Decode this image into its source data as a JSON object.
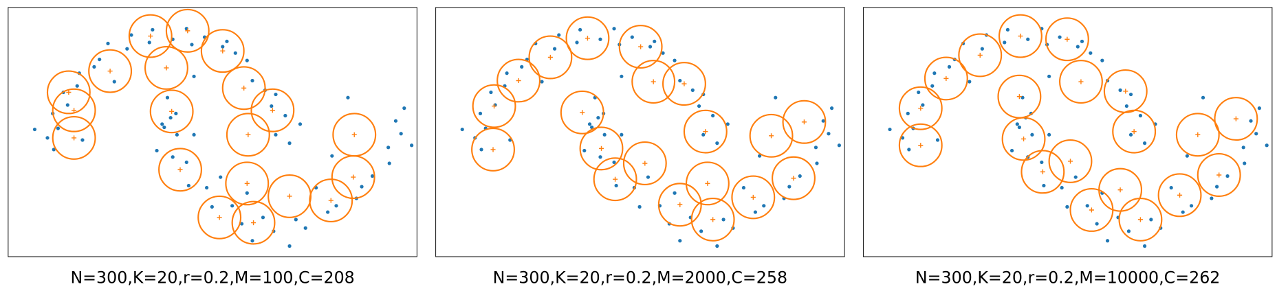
{
  "chart_data": [
    {
      "type": "scatter",
      "title": "N=300,K=20,r=0.2,M=100,C=208",
      "xlim": [
        -1.3,
        2.55
      ],
      "ylim": [
        -0.95,
        1.4
      ],
      "radius": 0.2,
      "points": {
        "color": "#1f77b4",
        "x": [
          1.35,
          1.22,
          1.31,
          1.18,
          1.12,
          1.22,
          1.0,
          0.95,
          0.84,
          0.72,
          0.76,
          0.55,
          0.43,
          0.38,
          0.25,
          0.06,
          0.03,
          -0.14,
          -0.18,
          -0.36,
          -0.44,
          -0.49,
          -0.63,
          -0.65,
          -0.78,
          -0.74,
          -0.88,
          -0.83,
          -0.93,
          -0.87,
          0.2,
          0.28,
          0.15,
          -1.05,
          -0.6,
          0.45,
          -0.3,
          1.45,
          0.23,
          0.17,
          0.29,
          0.25,
          0.38,
          0.4,
          0.57,
          0.62,
          0.81,
          0.9,
          1.1,
          1.2,
          1.41,
          1.5,
          1.71,
          1.79,
          1.98,
          2.03,
          2.13,
          2.29,
          2.28,
          2.4,
          2.35,
          2.43,
          1.0,
          1.35,
          0.7,
          1.6,
          2.5,
          0.1,
          1.9,
          0.95,
          1.75,
          0.45
        ],
        "y": [
          0.12,
          0.2,
          0.38,
          0.47,
          0.62,
          0.58,
          0.71,
          0.9,
          0.97,
          1.03,
          1.08,
          1.12,
          1.05,
          1.2,
          1.1,
          1.19,
          1.07,
          1.14,
          1.01,
          1.06,
          0.91,
          0.84,
          0.78,
          0.66,
          0.6,
          0.48,
          0.4,
          0.26,
          0.17,
          0.06,
          0.55,
          0.4,
          0.3,
          0.25,
          0.15,
          0.75,
          0.7,
          0.3,
          0.36,
          0.27,
          0.2,
          -0.01,
          -0.06,
          -0.28,
          -0.3,
          -0.48,
          -0.47,
          -0.64,
          -0.58,
          -0.71,
          -0.6,
          -0.68,
          -0.53,
          -0.47,
          -0.4,
          -0.29,
          -0.19,
          -0.07,
          0.08,
          0.21,
          0.33,
          0.45,
          -0.8,
          -0.85,
          -0.2,
          -0.3,
          0.1,
          0.05,
          0.55,
          -0.35,
          0.0,
          0.2
        ]
      },
      "centers": {
        "color": "#ff7f0e",
        "x": [
          0.04,
          0.39,
          0.72,
          -0.34,
          0.19,
          -0.73,
          -0.68,
          0.92,
          0.24,
          1.19,
          -0.68,
          1.96,
          0.96,
          0.32,
          1.95,
          0.95,
          1.35,
          1.74,
          0.69,
          1.01
        ],
        "y": [
          1.13,
          1.18,
          0.99,
          0.8,
          0.83,
          0.6,
          0.43,
          0.64,
          0.42,
          0.43,
          0.17,
          0.2,
          0.2,
          -0.13,
          -0.2,
          -0.26,
          -0.38,
          -0.42,
          -0.58,
          -0.63
        ]
      }
    },
    {
      "type": "scatter",
      "title": "N=300,K=20,r=0.2,M=2000,C=258",
      "xlim": [
        -1.3,
        2.55
      ],
      "ylim": [
        -0.95,
        1.4
      ],
      "radius": 0.2,
      "points": {
        "color": "#1f77b4",
        "x": [
          1.35,
          1.22,
          1.31,
          1.18,
          1.12,
          1.22,
          1.0,
          0.95,
          0.84,
          0.72,
          0.76,
          0.55,
          0.43,
          0.38,
          0.25,
          0.06,
          0.03,
          -0.14,
          -0.18,
          -0.36,
          -0.44,
          -0.49,
          -0.63,
          -0.65,
          -0.78,
          -0.74,
          -0.88,
          -0.83,
          -0.93,
          -0.87,
          0.2,
          0.28,
          0.15,
          -1.05,
          -0.6,
          0.45,
          -0.3,
          1.45,
          0.23,
          0.17,
          0.29,
          0.25,
          0.38,
          0.4,
          0.57,
          0.62,
          0.81,
          0.9,
          1.1,
          1.2,
          1.41,
          1.5,
          1.71,
          1.79,
          1.98,
          2.03,
          2.13,
          2.29,
          2.28,
          2.4,
          2.35,
          2.43,
          1.0,
          1.35,
          0.7,
          1.6,
          2.5,
          0.1,
          1.9,
          0.95,
          1.75,
          0.45
        ],
        "y": [
          0.12,
          0.2,
          0.38,
          0.47,
          0.62,
          0.58,
          0.71,
          0.9,
          0.97,
          1.03,
          1.08,
          1.12,
          1.05,
          1.2,
          1.1,
          1.19,
          1.07,
          1.14,
          1.01,
          1.06,
          0.91,
          0.84,
          0.78,
          0.66,
          0.6,
          0.48,
          0.4,
          0.26,
          0.17,
          0.06,
          0.55,
          0.4,
          0.3,
          0.25,
          0.15,
          0.75,
          0.7,
          0.3,
          0.36,
          0.27,
          0.2,
          -0.01,
          -0.06,
          -0.28,
          -0.3,
          -0.48,
          -0.47,
          -0.64,
          -0.58,
          -0.71,
          -0.6,
          -0.68,
          -0.53,
          -0.47,
          -0.4,
          -0.29,
          -0.19,
          -0.07,
          0.08,
          0.21,
          0.33,
          0.45,
          -0.8,
          -0.85,
          -0.2,
          -0.3,
          0.1,
          0.05,
          0.55,
          -0.35,
          0.0,
          0.2
        ]
      },
      "centers": {
        "color": "#ff7f0e",
        "x": [
          0.13,
          0.63,
          -0.22,
          -0.52,
          0.75,
          1.04,
          -0.75,
          0.08,
          1.24,
          2.17,
          -0.76,
          1.86,
          0.26,
          0.67,
          2.07,
          0.39,
          1.26,
          1.69,
          1.0,
          1.31
        ],
        "y": [
          1.11,
          1.03,
          0.93,
          0.71,
          0.7,
          0.68,
          0.47,
          0.41,
          0.23,
          0.32,
          0.06,
          0.19,
          0.07,
          -0.07,
          -0.21,
          -0.22,
          -0.26,
          -0.39,
          -0.46,
          -0.6
        ]
      }
    },
    {
      "type": "scatter",
      "title": "N=300,K=20,r=0.2,M=10000,C=262",
      "xlim": [
        -1.3,
        2.55
      ],
      "ylim": [
        -0.95,
        1.4
      ],
      "radius": 0.2,
      "points": {
        "color": "#1f77b4",
        "x": [
          1.35,
          1.22,
          1.31,
          1.18,
          1.12,
          1.22,
          1.0,
          0.95,
          0.84,
          0.72,
          0.76,
          0.55,
          0.43,
          0.38,
          0.25,
          0.06,
          0.03,
          -0.14,
          -0.18,
          -0.36,
          -0.44,
          -0.49,
          -0.63,
          -0.65,
          -0.78,
          -0.74,
          -0.88,
          -0.83,
          -0.93,
          -0.87,
          0.2,
          0.28,
          0.15,
          -1.05,
          -0.6,
          0.45,
          -0.3,
          1.45,
          0.23,
          0.17,
          0.29,
          0.25,
          0.38,
          0.4,
          0.57,
          0.62,
          0.81,
          0.9,
          1.1,
          1.2,
          1.41,
          1.5,
          1.71,
          1.79,
          1.98,
          2.03,
          2.13,
          2.29,
          2.28,
          2.4,
          2.35,
          2.43,
          1.0,
          1.35,
          0.7,
          1.6,
          2.5,
          0.1,
          1.9,
          0.95,
          1.75,
          0.45
        ],
        "y": [
          0.12,
          0.2,
          0.38,
          0.47,
          0.62,
          0.58,
          0.71,
          0.9,
          0.97,
          1.03,
          1.08,
          1.12,
          1.05,
          1.2,
          1.1,
          1.19,
          1.07,
          1.14,
          1.01,
          1.06,
          0.91,
          0.84,
          0.78,
          0.66,
          0.6,
          0.48,
          0.4,
          0.26,
          0.17,
          0.06,
          0.55,
          0.4,
          0.3,
          0.25,
          0.15,
          0.75,
          0.7,
          0.3,
          0.36,
          0.27,
          0.2,
          -0.01,
          -0.06,
          -0.28,
          -0.3,
          -0.48,
          -0.47,
          -0.64,
          -0.58,
          -0.71,
          -0.6,
          -0.68,
          -0.53,
          -0.47,
          -0.4,
          -0.29,
          -0.19,
          -0.07,
          0.08,
          0.21,
          0.33,
          0.45,
          -0.8,
          -0.85,
          -0.2,
          -0.3,
          0.1,
          0.05,
          0.55,
          -0.35,
          0.0,
          0.2
        ]
      },
      "centers": {
        "color": "#ff7f0e",
        "x": [
          0.18,
          0.62,
          -0.2,
          -0.52,
          0.75,
          1.17,
          -0.76,
          0.17,
          1.25,
          2.21,
          -0.76,
          1.85,
          0.21,
          0.65,
          2.05,
          0.39,
          1.12,
          1.68,
          0.85,
          1.31
        ],
        "y": [
          1.13,
          1.1,
          0.95,
          0.73,
          0.7,
          0.61,
          0.45,
          0.56,
          0.23,
          0.35,
          0.1,
          0.2,
          0.16,
          -0.05,
          -0.18,
          -0.15,
          -0.32,
          -0.37,
          -0.51,
          -0.6
        ]
      }
    }
  ]
}
